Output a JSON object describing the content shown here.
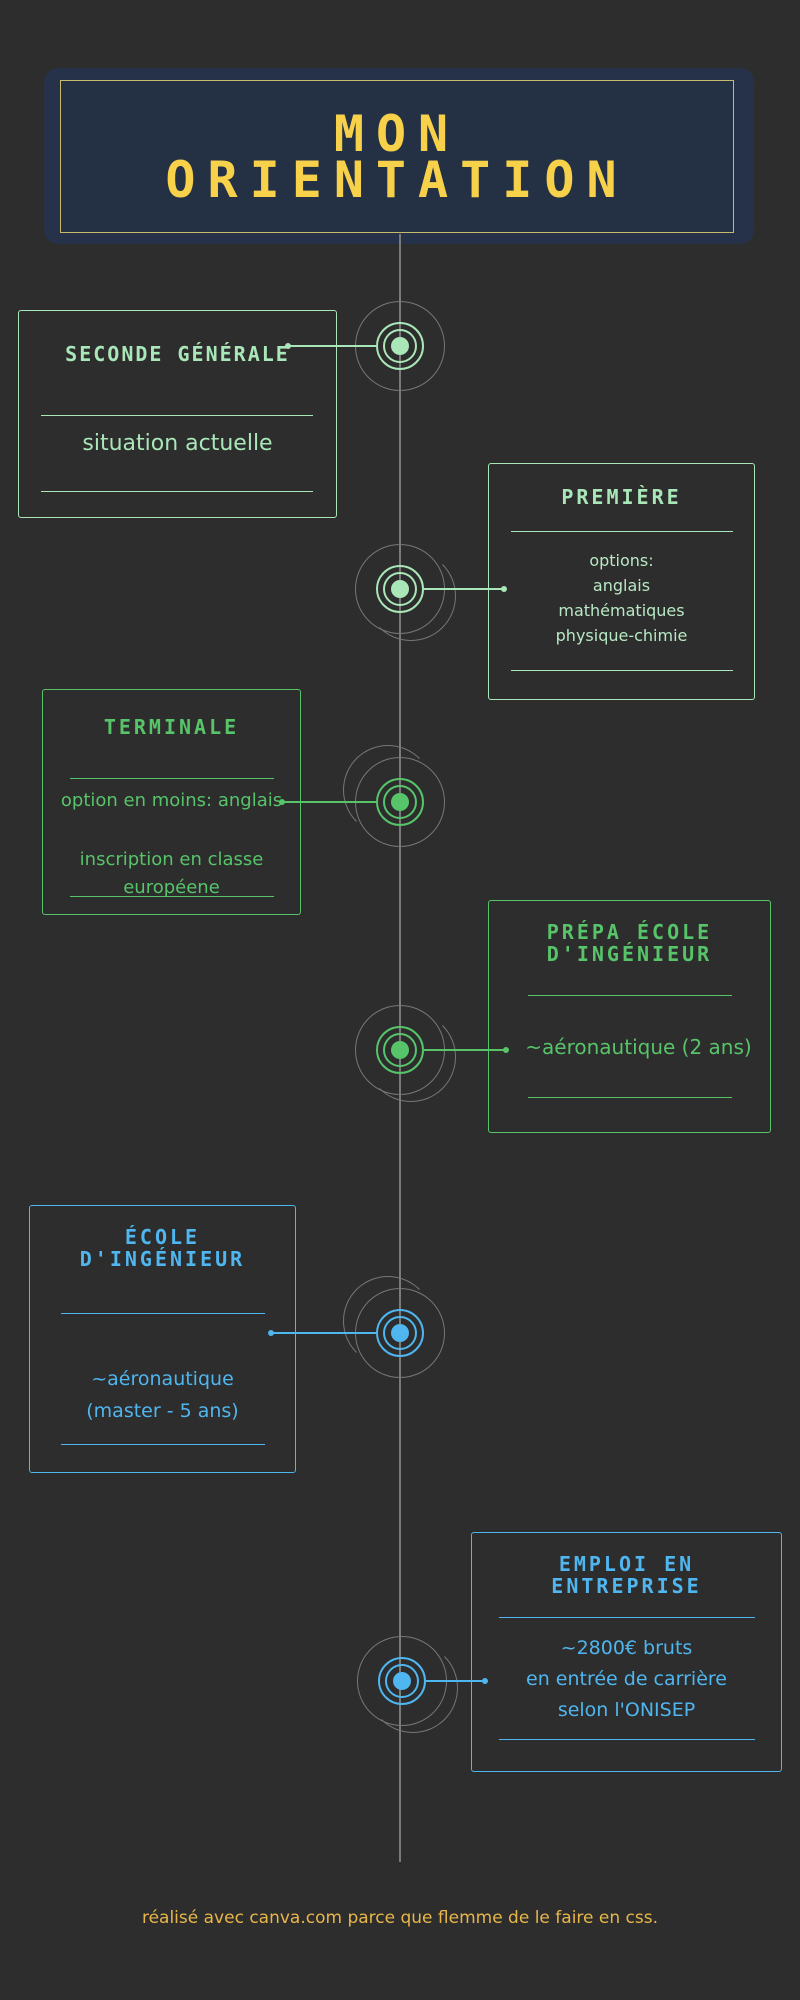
{
  "title": {
    "line1": "MON",
    "line2": "ORIENTATION"
  },
  "colors": {
    "background": "#2d2d2d",
    "title_text": "#f7d14a",
    "light_green": "#a9e6b8",
    "green": "#57c46a",
    "blue": "#4fb6ef",
    "footer_text": "#e8b64a"
  },
  "steps": [
    {
      "title": "SECONDE GÉNÉRALE",
      "lines": [
        "situation actuelle"
      ]
    },
    {
      "title": "PREMIÈRE",
      "lines": [
        "options:",
        "anglais",
        "mathématiques",
        "physique-chimie"
      ]
    },
    {
      "title": "TERMINALE",
      "lines": [
        "option en moins: anglais",
        "inscription en classe",
        "européene"
      ]
    },
    {
      "title_lines": [
        "PRÉPA ÉCOLE",
        "D'INGÉNIEUR"
      ],
      "lines": [
        "~aéronautique (2 ans)"
      ]
    },
    {
      "title_lines": [
        "ÉCOLE",
        "D'INGÉNIEUR"
      ],
      "lines": [
        "~aéronautique",
        "(master - 5 ans)"
      ]
    },
    {
      "title_lines": [
        "EMPLOI EN",
        "ENTREPRISE"
      ],
      "lines": [
        "~2800€ bruts",
        "en entrée de carrière",
        "selon l'ONISEP"
      ]
    }
  ],
  "footer": "réalisé avec canva.com parce que flemme de le faire en css."
}
